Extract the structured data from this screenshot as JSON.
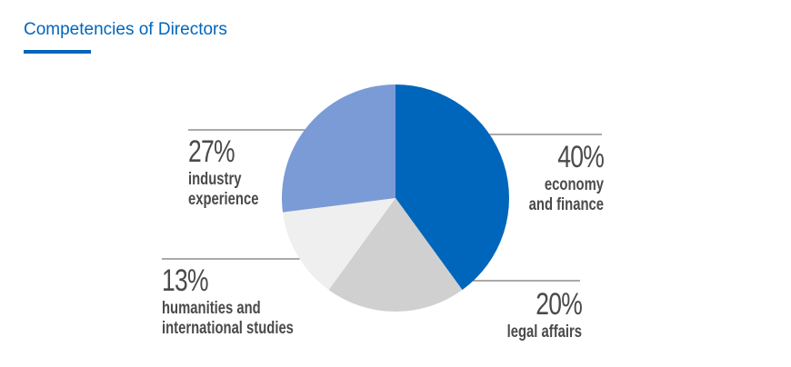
{
  "chart_data": {
    "type": "pie",
    "title": "Competencies of Directors",
    "categories": [
      "economy and finance",
      "legal affairs",
      "humanities and international studies",
      "industry experience"
    ],
    "values": [
      40,
      20,
      13,
      27
    ],
    "value_labels": [
      "40%",
      "20%",
      "13%",
      "27%"
    ],
    "colors": [
      "#0066bb",
      "#d0d0d0",
      "#efefef",
      "#7b9bd6"
    ]
  }
}
